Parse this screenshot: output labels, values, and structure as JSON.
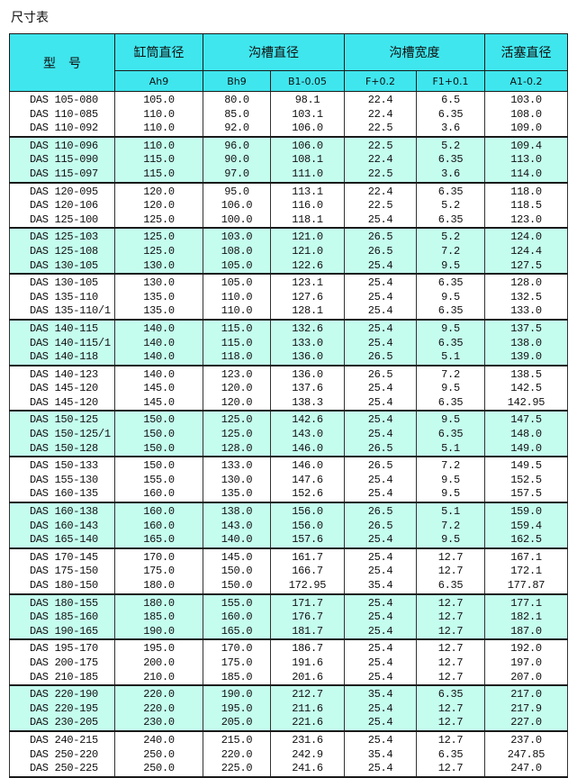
{
  "title": "尺寸表",
  "header": {
    "model": "型　号",
    "cylinder": "缸筒直径",
    "groove_dia": "沟槽直径",
    "groove_width": "沟槽宽度",
    "piston": "活塞直径",
    "sub": [
      "Ah9",
      "Bh9",
      "B1-0.05",
      "F+0.2",
      "F1+0.1",
      "A1-0.2"
    ]
  },
  "colors": {
    "header_bg": "#3fe6ee",
    "alt_row_bg": "#c4fdee"
  },
  "groups": [
    [
      [
        "DAS 105-080",
        "105.0",
        "80.0",
        "98.1",
        "22.4",
        "6.5",
        "103.0"
      ],
      [
        "DAS 110-085",
        "110.0",
        "85.0",
        "103.1",
        "22.4",
        "6.35",
        "108.0"
      ],
      [
        "DAS 110-092",
        "110.0",
        "92.0",
        "106.0",
        "22.5",
        "3.6",
        "109.0"
      ]
    ],
    [
      [
        "DAS 110-096",
        "110.0",
        "96.0",
        "106.0",
        "22.5",
        "5.2",
        "109.4"
      ],
      [
        "DAS 115-090",
        "115.0",
        "90.0",
        "108.1",
        "22.4",
        "6.35",
        "113.0"
      ],
      [
        "DAS 115-097",
        "115.0",
        "97.0",
        "111.0",
        "22.5",
        "3.6",
        "114.0"
      ]
    ],
    [
      [
        "DAS 120-095",
        "120.0",
        "95.0",
        "113.1",
        "22.4",
        "6.35",
        "118.0"
      ],
      [
        "DAS 120-106",
        "120.0",
        "106.0",
        "116.0",
        "22.5",
        "5.2",
        "118.5"
      ],
      [
        "DAS 125-100",
        "125.0",
        "100.0",
        "118.1",
        "25.4",
        "6.35",
        "123.0"
      ]
    ],
    [
      [
        "DAS 125-103",
        "125.0",
        "103.0",
        "121.0",
        "26.5",
        "5.2",
        "124.0"
      ],
      [
        "DAS 125-108",
        "125.0",
        "108.0",
        "121.0",
        "26.5",
        "7.2",
        "124.4"
      ],
      [
        "DAS 130-105",
        "130.0",
        "105.0",
        "122.6",
        "25.4",
        "9.5",
        "127.5"
      ]
    ],
    [
      [
        "DAS 130-105",
        "130.0",
        "105.0",
        "123.1",
        "25.4",
        "6.35",
        "128.0"
      ],
      [
        "DAS 135-110",
        "135.0",
        "110.0",
        "127.6",
        "25.4",
        "9.5",
        "132.5"
      ],
      [
        "DAS 135-110/1",
        "135.0",
        "110.0",
        "128.1",
        "25.4",
        "6.35",
        "133.0"
      ]
    ],
    [
      [
        "DAS 140-115",
        "140.0",
        "115.0",
        "132.6",
        "25.4",
        "9.5",
        "137.5"
      ],
      [
        "DAS 140-115/1",
        "140.0",
        "115.0",
        "133.0",
        "25.4",
        "6.35",
        "138.0"
      ],
      [
        "DAS 140-118",
        "140.0",
        "118.0",
        "136.0",
        "26.5",
        "5.1",
        "139.0"
      ]
    ],
    [
      [
        "DAS 140-123",
        "140.0",
        "123.0",
        "136.0",
        "26.5",
        "7.2",
        "138.5"
      ],
      [
        "DAS 145-120",
        "145.0",
        "120.0",
        "137.6",
        "25.4",
        "9.5",
        "142.5"
      ],
      [
        "DAS 145-120",
        "145.0",
        "120.0",
        "138.3",
        "25.4",
        "6.35",
        "142.95"
      ]
    ],
    [
      [
        "DAS 150-125",
        "150.0",
        "125.0",
        "142.6",
        "25.4",
        "9.5",
        "147.5"
      ],
      [
        "DAS 150-125/1",
        "150.0",
        "125.0",
        "143.0",
        "25.4",
        "6.35",
        "148.0"
      ],
      [
        "DAS 150-128",
        "150.0",
        "128.0",
        "146.0",
        "26.5",
        "5.1",
        "149.0"
      ]
    ],
    [
      [
        "DAS 150-133",
        "150.0",
        "133.0",
        "146.0",
        "26.5",
        "7.2",
        "149.5"
      ],
      [
        "DAS 155-130",
        "155.0",
        "130.0",
        "147.6",
        "25.4",
        "9.5",
        "152.5"
      ],
      [
        "DAS 160-135",
        "160.0",
        "135.0",
        "152.6",
        "25.4",
        "9.5",
        "157.5"
      ]
    ],
    [
      [
        "DAS 160-138",
        "160.0",
        "138.0",
        "156.0",
        "26.5",
        "5.1",
        "159.0"
      ],
      [
        "DAS 160-143",
        "160.0",
        "143.0",
        "156.0",
        "26.5",
        "7.2",
        "159.4"
      ],
      [
        "DAS 165-140",
        "165.0",
        "140.0",
        "157.6",
        "25.4",
        "9.5",
        "162.5"
      ]
    ],
    [
      [
        "DAS 170-145",
        "170.0",
        "145.0",
        "161.7",
        "25.4",
        "12.7",
        "167.1"
      ],
      [
        "DAS 175-150",
        "175.0",
        "150.0",
        "166.7",
        "25.4",
        "12.7",
        "172.1"
      ],
      [
        "DAS 180-150",
        "180.0",
        "150.0",
        "172.95",
        "35.4",
        "6.35",
        "177.87"
      ]
    ],
    [
      [
        "DAS 180-155",
        "180.0",
        "155.0",
        "171.7",
        "25.4",
        "12.7",
        "177.1"
      ],
      [
        "DAS 185-160",
        "185.0",
        "160.0",
        "176.7",
        "25.4",
        "12.7",
        "182.1"
      ],
      [
        "DAS 190-165",
        "190.0",
        "165.0",
        "181.7",
        "25.4",
        "12.7",
        "187.0"
      ]
    ],
    [
      [
        "DAS 195-170",
        "195.0",
        "170.0",
        "186.7",
        "25.4",
        "12.7",
        "192.0"
      ],
      [
        "DAS 200-175",
        "200.0",
        "175.0",
        "191.6",
        "25.4",
        "12.7",
        "197.0"
      ],
      [
        "DAS 210-185",
        "210.0",
        "185.0",
        "201.6",
        "25.4",
        "12.7",
        "207.0"
      ]
    ],
    [
      [
        "DAS 220-190",
        "220.0",
        "190.0",
        "212.7",
        "35.4",
        "6.35",
        "217.0"
      ],
      [
        "DAS 220-195",
        "220.0",
        "195.0",
        "211.6",
        "25.4",
        "12.7",
        "217.9"
      ],
      [
        "DAS 230-205",
        "230.0",
        "205.0",
        "221.6",
        "25.4",
        "12.7",
        "227.0"
      ]
    ],
    [
      [
        "DAS 240-215",
        "240.0",
        "215.0",
        "231.6",
        "25.4",
        "12.7",
        "237.0"
      ],
      [
        "DAS 250-220",
        "250.0",
        "220.0",
        "242.9",
        "35.4",
        "6.35",
        "247.85"
      ],
      [
        "DAS 250-225",
        "250.0",
        "225.0",
        "241.6",
        "25.4",
        "12.7",
        "247.0"
      ]
    ]
  ]
}
